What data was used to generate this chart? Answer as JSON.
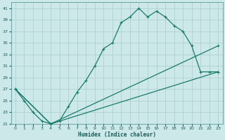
{
  "xlabel": "Humidex (Indice chaleur)",
  "ylabel": "",
  "bg_color": "#cce8e8",
  "grid_color": "#aacccc",
  "line_color": "#1a7a6a",
  "xlim": [
    -0.5,
    23.5
  ],
  "ylim": [
    21,
    42
  ],
  "yticks": [
    21,
    23,
    25,
    27,
    29,
    31,
    33,
    35,
    37,
    39,
    41
  ],
  "xticks": [
    0,
    1,
    2,
    3,
    4,
    5,
    6,
    7,
    8,
    9,
    10,
    11,
    12,
    13,
    14,
    15,
    16,
    17,
    18,
    19,
    20,
    21,
    22,
    23
  ],
  "line1_x": [
    0,
    1,
    2,
    3,
    4,
    5,
    6,
    7,
    8,
    9,
    10,
    11,
    12,
    13,
    14,
    15,
    16,
    17,
    18,
    19,
    20,
    21,
    22,
    23
  ],
  "line1_y": [
    27,
    25,
    23,
    21.5,
    21,
    21.5,
    24,
    26.5,
    28.5,
    31,
    34,
    35,
    38.5,
    39.5,
    41,
    39.5,
    40.5,
    39.5,
    38,
    37,
    34.5,
    30,
    30,
    30
  ],
  "line2_x": [
    0,
    4,
    23
  ],
  "line2_y": [
    27,
    21,
    34.5
  ],
  "line3_x": [
    0,
    4,
    23
  ],
  "line3_y": [
    27,
    21,
    30
  ]
}
